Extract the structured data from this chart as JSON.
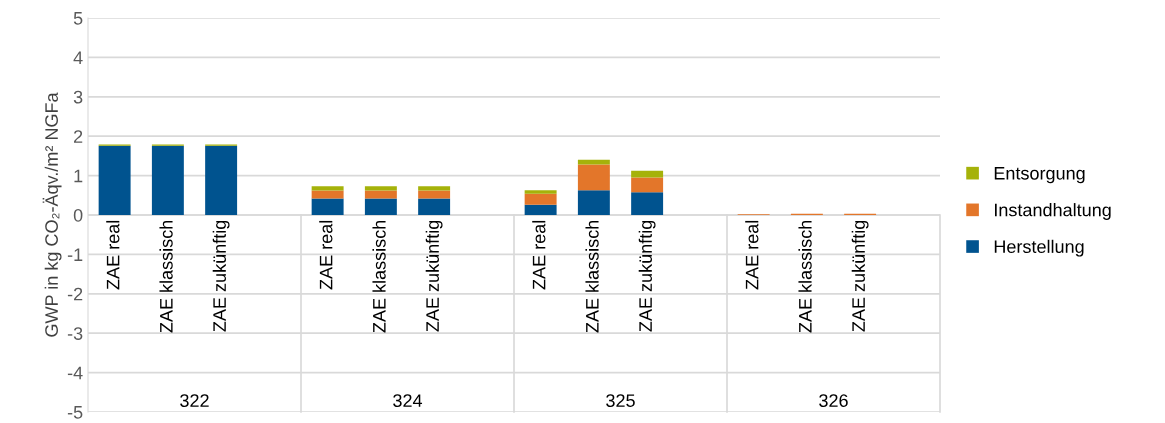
{
  "chart_data": {
    "type": "bar",
    "stacked": true,
    "ylabel": "GWP in kg CO₂-Äqv./m² NGFa",
    "categories": [
      "ZAE real",
      "ZAE klassisch",
      "ZAE zukünftig",
      null,
      "ZAE real",
      "ZAE klassisch",
      "ZAE zukünftig",
      null,
      "ZAE real",
      "ZAE klassisch",
      "ZAE zukünftig",
      null,
      "ZAE real",
      "ZAE klassisch",
      "ZAE zukünftig",
      null
    ],
    "series": [
      {
        "name": "Herstellung",
        "color": "#00538f",
        "values": [
          1.76,
          1.76,
          1.76,
          null,
          0.42,
          0.42,
          0.42,
          null,
          0.26,
          0.63,
          0.58,
          null,
          0,
          0,
          0,
          null
        ]
      },
      {
        "name": "Instandhaltung",
        "color": "#e3762a",
        "values": [
          0,
          0,
          0,
          null,
          0.2,
          0.2,
          0.2,
          null,
          0.28,
          0.65,
          0.37,
          null,
          0.02,
          0.03,
          0.03,
          null
        ]
      },
      {
        "name": "Entsorgung",
        "color": "#a5b20a",
        "values": [
          0.03,
          0.03,
          0.03,
          null,
          0.11,
          0.11,
          0.11,
          null,
          0.09,
          0.12,
          0.17,
          null,
          0,
          0,
          0,
          null
        ]
      }
    ],
    "annotations": [
      "322",
      "324",
      "325",
      "326"
    ],
    "ylim": [
      -5,
      5
    ],
    "yticks": [
      -5,
      -4,
      -3,
      -2,
      -1,
      0,
      1,
      2,
      3,
      4,
      5
    ],
    "grid": "y",
    "legend": "right"
  }
}
